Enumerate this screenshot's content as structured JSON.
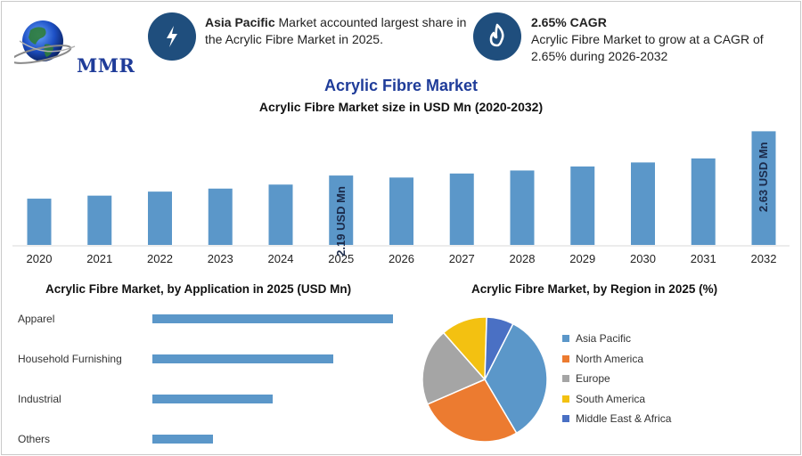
{
  "header": {
    "logo_text": "MMR",
    "kpi1": {
      "bold": "Asia Pacific",
      "text": " Market accounted largest share in the Acrylic Fibre Market in 2025.",
      "icon": "lightning-icon"
    },
    "kpi2": {
      "title": "2.65% CAGR",
      "text": "Acrylic Fibre Market to grow at a CAGR of 2.65% during 2026-2032",
      "icon": "flame-icon"
    }
  },
  "title": "Acrylic Fibre Market",
  "colors": {
    "bar": "#5b97c9",
    "navy": "#1f4e7d",
    "title": "#1f3c99"
  },
  "chart_data": [
    {
      "type": "bar",
      "title": "Acrylic Fibre Market size in USD Mn (2020-2032)",
      "categories": [
        "2020",
        "2021",
        "2022",
        "2023",
        "2024",
        "2025",
        "2026",
        "2027",
        "2028",
        "2029",
        "2030",
        "2031",
        "2032"
      ],
      "values": [
        1.96,
        1.99,
        2.03,
        2.06,
        2.1,
        2.19,
        2.17,
        2.21,
        2.24,
        2.28,
        2.32,
        2.36,
        2.63
      ],
      "data_labels": [
        {
          "category": "2025",
          "text": "2.19 USD Mn"
        },
        {
          "category": "2032",
          "text": "2.63 USD Mn"
        }
      ],
      "xlabel": "",
      "ylabel": ""
    },
    {
      "type": "bar",
      "orientation": "horizontal",
      "title": "Acrylic Fibre Market, by Application in 2025 (USD Mn)",
      "categories": [
        "Apparel",
        "Household Furnishing",
        "Industrial",
        "Others"
      ],
      "values": [
        100,
        75,
        50,
        25
      ]
    },
    {
      "type": "pie",
      "title": "Acrylic Fibre Market, by Region in 2025 (%)",
      "series": [
        {
          "name": "Asia Pacific",
          "value": 34,
          "color": "#5b97c9"
        },
        {
          "name": "North America",
          "value": 27,
          "color": "#ec7b30"
        },
        {
          "name": "Europe",
          "value": 20,
          "color": "#a5a5a5"
        },
        {
          "name": "South America",
          "value": 12,
          "color": "#f3c111"
        },
        {
          "name": "Middle East & Africa",
          "value": 7,
          "color": "#4a70c4"
        }
      ]
    }
  ]
}
